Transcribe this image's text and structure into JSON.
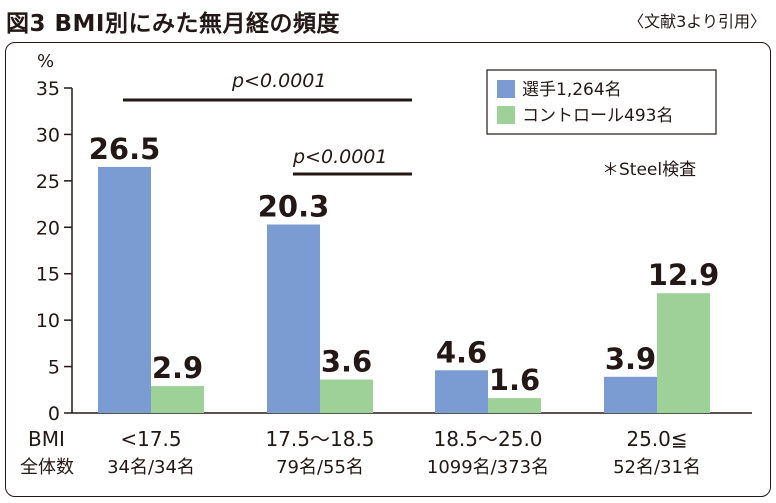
{
  "header": {
    "title": "図3 BMI別にみた無月経の頻度",
    "source": "〈文献3より引用〉"
  },
  "chart_data": {
    "type": "bar",
    "title": "図3 BMI別にみた無月経の頻度",
    "ylabel": "%",
    "xlabel": "BMI",
    "ylim": [
      0,
      35
    ],
    "yticks": [
      0,
      5,
      10,
      15,
      20,
      25,
      30,
      35
    ],
    "categories": [
      "<17.5",
      "17.5〜18.5",
      "18.5〜25.0",
      "25.0≦"
    ],
    "row_label_bmi": "BMI",
    "row_label_count": "全体数",
    "counts": [
      "34名/34名",
      "79名/55名",
      "1099名/373名",
      "52名/31名"
    ],
    "series": [
      {
        "name": "選手1,264名",
        "values": [
          26.5,
          20.3,
          4.6,
          3.9
        ],
        "labels": [
          "26.5",
          "20.3",
          "4.6",
          "3.9"
        ],
        "color": "#7b9bd3"
      },
      {
        "name": "コントロール493名",
        "values": [
          2.9,
          3.6,
          1.6,
          12.9
        ],
        "labels": [
          "2.9",
          "3.6",
          "1.6",
          "12.9"
        ],
        "color": "#9ed197"
      }
    ],
    "legend_position": "top-right",
    "annotations": {
      "significance_1": "p<0.0001",
      "significance_2": "p<0.0001",
      "test_note": "＊Steel検査"
    },
    "grid": false
  }
}
